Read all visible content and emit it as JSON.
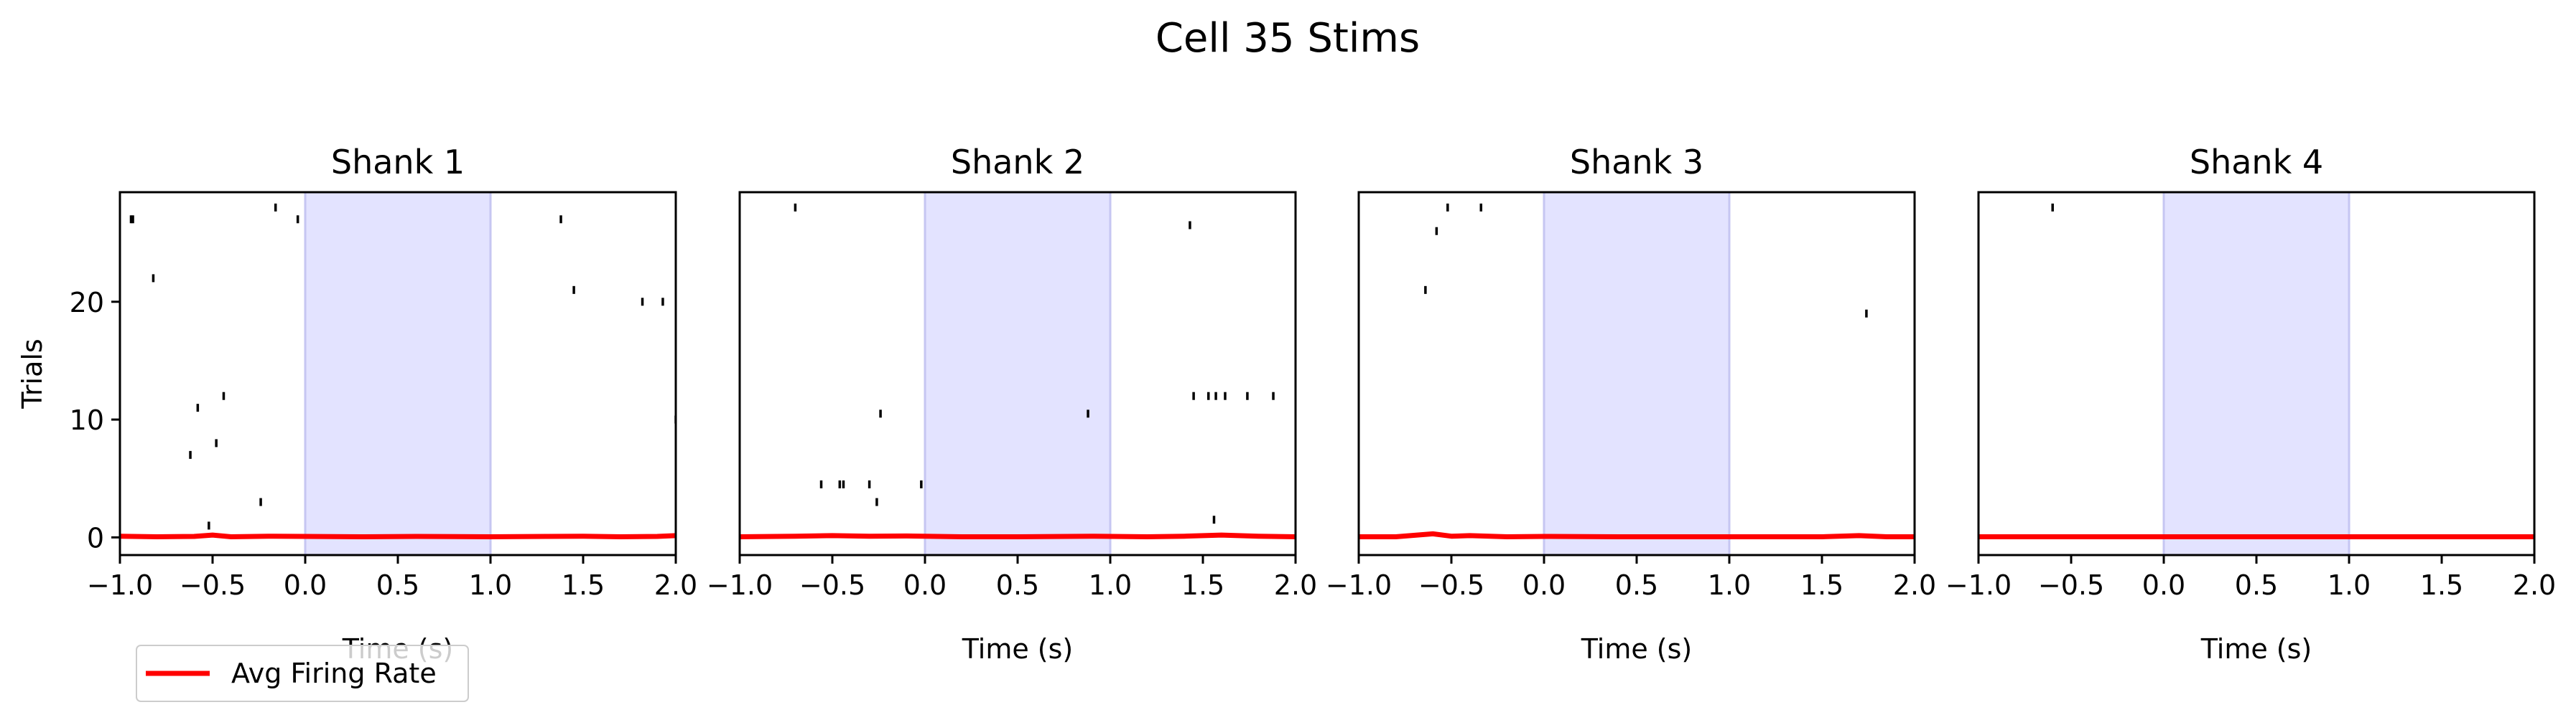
{
  "title": "Cell 35 Stims",
  "legend": {
    "label": "Avg Firing Rate",
    "color": "#ff0000",
    "placement": "lower-left"
  },
  "colors": {
    "stim_window": "#e3e3ff",
    "stim_edge": "#c6c6f2",
    "spikes": "#000000",
    "rate": "#ff0000"
  },
  "chart_data": [
    {
      "type": "raster",
      "title": "Shank 1",
      "xlabel": "Time (s)",
      "ylabel": "Trials",
      "xlim": [
        -1.0,
        2.0
      ],
      "ylim": [
        -1.5,
        29.3
      ],
      "xticks": [
        "−1.0",
        "−0.5",
        "0.0",
        "0.5",
        "1.0",
        "1.5",
        "2.0"
      ],
      "yticks": [
        "0",
        "10",
        "20"
      ],
      "stim_window": [
        0.0,
        1.0
      ],
      "spikes": [
        [
          -0.94,
          27
        ],
        [
          -0.93,
          27
        ],
        [
          -0.82,
          22
        ],
        [
          -0.62,
          7
        ],
        [
          -0.58,
          11
        ],
        [
          -0.52,
          1
        ],
        [
          -0.48,
          8
        ],
        [
          -0.44,
          12
        ],
        [
          -0.24,
          3
        ],
        [
          -0.16,
          28
        ],
        [
          -0.04,
          27
        ],
        [
          1.38,
          27
        ],
        [
          1.45,
          21
        ],
        [
          1.82,
          20
        ],
        [
          1.93,
          20
        ],
        [
          2.0,
          10
        ]
      ],
      "rate": [
        [
          -1.0,
          0.1
        ],
        [
          -0.8,
          0.05
        ],
        [
          -0.6,
          0.08
        ],
        [
          -0.5,
          0.2
        ],
        [
          -0.4,
          0.05
        ],
        [
          -0.2,
          0.1
        ],
        [
          0.0,
          0.08
        ],
        [
          0.3,
          0.05
        ],
        [
          0.6,
          0.08
        ],
        [
          1.0,
          0.05
        ],
        [
          1.3,
          0.08
        ],
        [
          1.5,
          0.1
        ],
        [
          1.7,
          0.05
        ],
        [
          1.9,
          0.08
        ],
        [
          2.0,
          0.15
        ]
      ]
    },
    {
      "type": "raster",
      "title": "Shank 2",
      "xlabel": "Time (s)",
      "ylabel": "",
      "xlim": [
        -1.0,
        2.0
      ],
      "ylim": [
        -1.5,
        29.3
      ],
      "xticks": [
        "−1.0",
        "−0.5",
        "0.0",
        "0.5",
        "1.0",
        "1.5",
        "2.0"
      ],
      "yticks": [],
      "stim_window": [
        0.0,
        1.0
      ],
      "spikes": [
        [
          -0.7,
          28
        ],
        [
          -0.56,
          4.5
        ],
        [
          -0.46,
          4.5
        ],
        [
          -0.44,
          4.5
        ],
        [
          -0.3,
          4.5
        ],
        [
          -0.24,
          10.5
        ],
        [
          -0.26,
          3
        ],
        [
          -0.02,
          4.5
        ],
        [
          0.88,
          10.5
        ],
        [
          1.43,
          26.5
        ],
        [
          1.45,
          12
        ],
        [
          1.53,
          12
        ],
        [
          1.57,
          12
        ],
        [
          1.62,
          12
        ],
        [
          1.74,
          12
        ],
        [
          1.88,
          12
        ],
        [
          1.56,
          1.5
        ]
      ],
      "rate": [
        [
          -1.0,
          0.05
        ],
        [
          -0.7,
          0.1
        ],
        [
          -0.5,
          0.15
        ],
        [
          -0.3,
          0.1
        ],
        [
          -0.1,
          0.12
        ],
        [
          0.2,
          0.05
        ],
        [
          0.5,
          0.05
        ],
        [
          0.9,
          0.1
        ],
        [
          1.2,
          0.05
        ],
        [
          1.4,
          0.1
        ],
        [
          1.6,
          0.2
        ],
        [
          1.8,
          0.1
        ],
        [
          2.0,
          0.05
        ]
      ]
    },
    {
      "type": "raster",
      "title": "Shank 3",
      "xlabel": "Time (s)",
      "ylabel": "",
      "xlim": [
        -1.0,
        2.0
      ],
      "ylim": [
        -1.5,
        29.3
      ],
      "xticks": [
        "−1.0",
        "−0.5",
        "0.0",
        "0.5",
        "1.0",
        "1.5",
        "2.0"
      ],
      "yticks": [],
      "stim_window": [
        0.0,
        1.0
      ],
      "spikes": [
        [
          -0.64,
          21
        ],
        [
          -0.58,
          26
        ],
        [
          -0.52,
          28
        ],
        [
          -0.34,
          28
        ],
        [
          1.74,
          19
        ]
      ],
      "rate": [
        [
          -1.0,
          0.05
        ],
        [
          -0.8,
          0.05
        ],
        [
          -0.6,
          0.3
        ],
        [
          -0.5,
          0.1
        ],
        [
          -0.4,
          0.15
        ],
        [
          -0.2,
          0.05
        ],
        [
          0.0,
          0.08
        ],
        [
          0.4,
          0.05
        ],
        [
          0.8,
          0.05
        ],
        [
          1.2,
          0.05
        ],
        [
          1.5,
          0.05
        ],
        [
          1.7,
          0.15
        ],
        [
          1.85,
          0.05
        ],
        [
          2.0,
          0.05
        ]
      ]
    },
    {
      "type": "raster",
      "title": "Shank 4",
      "xlabel": "Time (s)",
      "ylabel": "",
      "xlim": [
        -1.0,
        2.0
      ],
      "ylim": [
        -1.5,
        29.3
      ],
      "xticks": [
        "−1.0",
        "−0.5",
        "0.0",
        "0.5",
        "1.0",
        "1.5",
        "2.0"
      ],
      "yticks": [],
      "stim_window": [
        0.0,
        1.0
      ],
      "spikes": [
        [
          -0.6,
          28
        ]
      ],
      "rate": [
        [
          -1.0,
          0.05
        ],
        [
          0.0,
          0.05
        ],
        [
          1.0,
          0.05
        ],
        [
          2.0,
          0.05
        ]
      ]
    }
  ]
}
